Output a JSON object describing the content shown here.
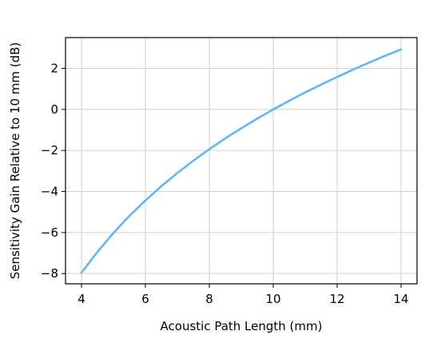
{
  "chart_data": {
    "type": "line",
    "title": "",
    "xlabel": "Acoustic Path Length (mm)",
    "ylabel": "Sensitivity Gain Relative to 10 mm (dB)",
    "xlim": [
      3.5,
      14.5
    ],
    "ylim": [
      -8.5,
      3.5
    ],
    "x_ticks": [
      4,
      6,
      8,
      10,
      12,
      14
    ],
    "y_ticks": [
      -8,
      -6,
      -4,
      -2,
      0,
      2
    ],
    "x_tick_labels": [
      "4",
      "6",
      "8",
      "10",
      "12",
      "14"
    ],
    "y_tick_labels": [
      "−8",
      "−6",
      "−4",
      "−2",
      "0",
      "2"
    ],
    "grid": true,
    "series": [
      {
        "color": "#64b5f6",
        "x": [
          4,
          4.5,
          5,
          5.5,
          6,
          6.5,
          7,
          7.5,
          8,
          8.5,
          9,
          9.5,
          10,
          10.5,
          11,
          11.5,
          12,
          12.5,
          13,
          13.5,
          14
        ],
        "y": [
          -7.96,
          -6.94,
          -6.02,
          -5.19,
          -4.44,
          -3.74,
          -3.1,
          -2.5,
          -1.94,
          -1.41,
          -0.92,
          -0.45,
          0.0,
          0.42,
          0.83,
          1.21,
          1.58,
          1.94,
          2.28,
          2.61,
          2.92
        ]
      }
    ]
  }
}
